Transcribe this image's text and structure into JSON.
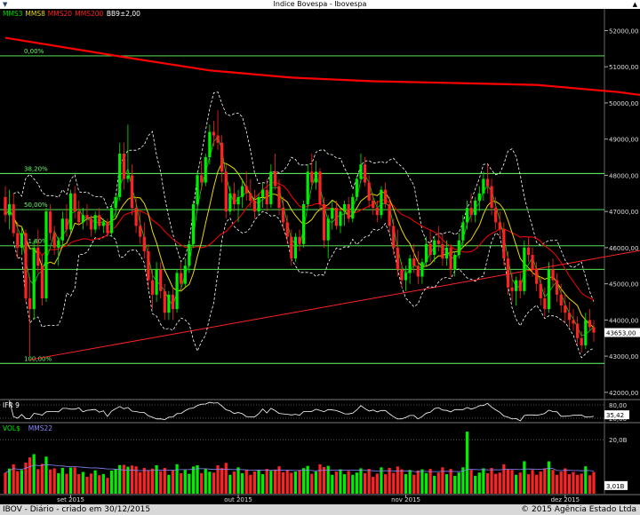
{
  "window": {
    "title": "Indice Bovespa - Ibovespa"
  },
  "footer": {
    "left": "IBOV - Diário - criado em 30/12/2015",
    "right": "© 2015 Agência Estado Ltda"
  },
  "colors": {
    "mms3": "#00dd00",
    "mms8": "#e8d800",
    "mms20": "#ff0000",
    "mms200": "#ff0000",
    "bb": "#ffffff",
    "up": "#00ee00",
    "down": "#ff2222",
    "fib": "#66ff66",
    "ifr": "#ffffff",
    "mms22": "#8888ff"
  },
  "chart_data": [
    {
      "type": "candlestick",
      "title": "Indice Bovespa - Ibovespa",
      "legend": [
        {
          "name": "MMS3",
          "color": "#00dd00"
        },
        {
          "name": "MMS8",
          "color": "#e8d800"
        },
        {
          "name": "MMS20",
          "color": "#ff2222"
        },
        {
          "name": "MMS200",
          "color": "#ff2222"
        },
        {
          "name": "BB9±2,00",
          "color": "#ffffff"
        }
      ],
      "y_ticks": [
        52000,
        51000,
        50000,
        49000,
        48000,
        47000,
        46000,
        45000,
        44000,
        43000,
        42000
      ],
      "y_tick_labels": [
        "52000,00",
        "51000,00",
        "50000,00",
        "49000,00",
        "48000,00",
        "47000,00",
        "46000,00",
        "45000,00",
        "44000,00",
        "43000,00",
        "42000,00"
      ],
      "ylim": [
        41800,
        52600
      ],
      "last_price_label": "43653,00",
      "last_price": 43653,
      "x_ticks": [
        {
          "i": 16,
          "label": "set 2015"
        },
        {
          "i": 57,
          "label": "out 2015"
        },
        {
          "i": 98,
          "label": "nov 2015"
        },
        {
          "i": 137,
          "label": "dez 2015"
        }
      ],
      "fibonacci": [
        {
          "label": "0,00%",
          "value": 51300
        },
        {
          "label": "38,20%",
          "value": 48050
        },
        {
          "label": "50,00%",
          "value": 47050
        },
        {
          "label": "61,80%",
          "value": 46050
        },
        {
          "label": "",
          "value": 45400
        },
        {
          "label": "100,00%",
          "value": 42800
        }
      ],
      "trendline": {
        "from": [
          6,
          42900
        ],
        "to": [
          179,
          46400
        ]
      },
      "mms200": [
        [
          0,
          51800
        ],
        [
          30,
          51250
        ],
        [
          50,
          50900
        ],
        [
          70,
          50700
        ],
        [
          90,
          50600
        ],
        [
          110,
          50550
        ],
        [
          130,
          50500
        ],
        [
          150,
          50300
        ],
        [
          170,
          50000
        ],
        [
          176,
          49900
        ]
      ],
      "candles": [
        [
          47400,
          47700,
          46700,
          46900
        ],
        [
          46900,
          47600,
          46500,
          47200
        ],
        [
          47200,
          47500,
          46300,
          46400
        ],
        [
          46400,
          46700,
          45700,
          46000
        ],
        [
          46000,
          46600,
          45800,
          46400
        ],
        [
          46400,
          46500,
          44500,
          44600
        ],
        [
          44600,
          45200,
          43000,
          44300
        ],
        [
          44300,
          46200,
          44000,
          46000
        ],
        [
          46000,
          46500,
          45300,
          45500
        ],
        [
          45500,
          45800,
          44400,
          44600
        ],
        [
          44600,
          47100,
          44500,
          47000
        ],
        [
          47000,
          47200,
          46200,
          46400
        ],
        [
          46400,
          46600,
          45800,
          46000
        ],
        [
          46000,
          46300,
          45500,
          46200
        ],
        [
          46200,
          47000,
          46000,
          46800
        ],
        [
          46800,
          47200,
          46300,
          46500
        ],
        [
          46500,
          47600,
          46400,
          47500
        ],
        [
          47500,
          47700,
          46800,
          47000
        ],
        [
          47000,
          47300,
          46600,
          46700
        ],
        [
          46700,
          47100,
          46500,
          46900
        ],
        [
          46900,
          47200,
          46600,
          46800
        ],
        [
          46800,
          46900,
          46300,
          46500
        ],
        [
          46500,
          47000,
          46400,
          46900
        ],
        [
          46900,
          47100,
          46500,
          46600
        ],
        [
          46600,
          46800,
          46400,
          46700
        ],
        [
          46700,
          46800,
          46300,
          46400
        ],
        [
          46400,
          47200,
          46300,
          47100
        ],
        [
          47100,
          47500,
          46800,
          47400
        ],
        [
          47400,
          48900,
          47300,
          48600
        ],
        [
          48600,
          48900,
          47600,
          47900
        ],
        [
          47900,
          49400,
          47800,
          48000
        ],
        [
          48000,
          48300,
          46900,
          47100
        ],
        [
          47100,
          47400,
          46400,
          46600
        ],
        [
          46600,
          47000,
          46100,
          46300
        ],
        [
          46300,
          46700,
          45700,
          45900
        ],
        [
          45900,
          46100,
          44900,
          45100
        ],
        [
          45100,
          45400,
          44300,
          44700
        ],
        [
          44700,
          45600,
          44500,
          45400
        ],
        [
          45400,
          45600,
          44600,
          44800
        ],
        [
          44800,
          45000,
          44000,
          44200
        ],
        [
          44200,
          44800,
          44000,
          44700
        ],
        [
          44700,
          44900,
          44000,
          44300
        ],
        [
          44300,
          45400,
          44200,
          45300
        ],
        [
          45300,
          45600,
          44800,
          45000
        ],
        [
          45000,
          45700,
          44900,
          45500
        ],
        [
          45500,
          46200,
          45300,
          46100
        ],
        [
          46100,
          47300,
          46000,
          47200
        ],
        [
          47200,
          48100,
          47000,
          48000
        ],
        [
          48000,
          48400,
          47600,
          47800
        ],
        [
          47800,
          48600,
          47700,
          48500
        ],
        [
          48500,
          49400,
          48300,
          49200
        ],
        [
          49200,
          49500,
          48800,
          49100
        ],
        [
          49100,
          49800,
          48700,
          48900
        ],
        [
          48900,
          49100,
          47800,
          48100
        ],
        [
          48100,
          48300,
          46800,
          47000
        ],
        [
          47000,
          47700,
          46900,
          47500
        ],
        [
          47500,
          47800,
          47000,
          47200
        ],
        [
          47200,
          47600,
          46700,
          47400
        ],
        [
          47400,
          47900,
          47100,
          47700
        ],
        [
          47700,
          48100,
          47300,
          47500
        ],
        [
          47500,
          47900,
          47100,
          47300
        ],
        [
          47300,
          47600,
          46800,
          47000
        ],
        [
          47000,
          47500,
          46900,
          47400
        ],
        [
          47400,
          47800,
          47100,
          47600
        ],
        [
          47600,
          47900,
          47000,
          47200
        ],
        [
          47200,
          48300,
          47100,
          48100
        ],
        [
          48100,
          48600,
          47600,
          47700
        ],
        [
          47700,
          47900,
          46900,
          47100
        ],
        [
          47100,
          47400,
          46500,
          46700
        ],
        [
          46700,
          46900,
          46100,
          46300
        ],
        [
          46300,
          46500,
          45500,
          45700
        ],
        [
          45700,
          46400,
          45600,
          46300
        ],
        [
          46300,
          46500,
          45900,
          46100
        ],
        [
          46100,
          47300,
          46000,
          47200
        ],
        [
          47200,
          48300,
          47100,
          48100
        ],
        [
          48100,
          48600,
          47700,
          47800
        ],
        [
          47800,
          48400,
          47600,
          48100
        ],
        [
          48100,
          48200,
          47000,
          47200
        ],
        [
          47200,
          47400,
          46000,
          46200
        ],
        [
          46200,
          46900,
          45700,
          46800
        ],
        [
          46800,
          47300,
          46500,
          47100
        ],
        [
          47100,
          47300,
          46500,
          46600
        ],
        [
          46600,
          47100,
          46400,
          47000
        ],
        [
          47000,
          47300,
          46600,
          47200
        ],
        [
          47200,
          47400,
          46700,
          46800
        ],
        [
          46800,
          47500,
          46700,
          47400
        ],
        [
          47400,
          48000,
          47300,
          47900
        ],
        [
          47900,
          48600,
          47800,
          48300
        ],
        [
          48300,
          48500,
          47700,
          47800
        ],
        [
          47800,
          48000,
          47100,
          47300
        ],
        [
          47300,
          47500,
          46900,
          47100
        ],
        [
          47100,
          47300,
          46700,
          46900
        ],
        [
          46900,
          47700,
          46800,
          47600
        ],
        [
          47600,
          47800,
          47100,
          47200
        ],
        [
          47200,
          47400,
          46400,
          46600
        ],
        [
          46600,
          46800,
          45800,
          46000
        ],
        [
          46000,
          46500,
          45200,
          45400
        ],
        [
          45400,
          45600,
          44900,
          45100
        ],
        [
          45100,
          45500,
          44800,
          45300
        ],
        [
          45300,
          45800,
          45000,
          45700
        ],
        [
          45700,
          46100,
          45300,
          45500
        ],
        [
          45500,
          45900,
          45000,
          45200
        ],
        [
          45200,
          45700,
          45000,
          45600
        ],
        [
          45600,
          46300,
          45500,
          46100
        ],
        [
          46100,
          46500,
          45600,
          45800
        ],
        [
          45800,
          46300,
          45600,
          46200
        ],
        [
          46200,
          46600,
          45900,
          46100
        ],
        [
          46100,
          46400,
          45500,
          45700
        ],
        [
          45700,
          46200,
          45500,
          46000
        ],
        [
          46000,
          46100,
          45200,
          45400
        ],
        [
          45400,
          45900,
          45200,
          45800
        ],
        [
          45800,
          46400,
          45700,
          46200
        ],
        [
          46200,
          46900,
          46000,
          46700
        ],
        [
          46700,
          47300,
          46500,
          47100
        ],
        [
          47100,
          47500,
          46700,
          46900
        ],
        [
          46900,
          47400,
          46700,
          47300
        ],
        [
          47300,
          47700,
          47000,
          47500
        ],
        [
          47500,
          48100,
          47300,
          47900
        ],
        [
          47900,
          48300,
          47500,
          47700
        ],
        [
          47700,
          47900,
          46900,
          47100
        ],
        [
          47100,
          47400,
          46500,
          46700
        ],
        [
          46700,
          47000,
          46300,
          46500
        ],
        [
          46500,
          46700,
          45500,
          45700
        ],
        [
          45700,
          45900,
          44700,
          44900
        ],
        [
          44900,
          45300,
          44500,
          44800
        ],
        [
          44800,
          45200,
          44400,
          45100
        ],
        [
          45100,
          45300,
          44600,
          44800
        ],
        [
          44800,
          46200,
          44700,
          46000
        ],
        [
          46000,
          46300,
          45600,
          45800
        ],
        [
          45800,
          46000,
          45200,
          45400
        ],
        [
          45400,
          45600,
          44800,
          45000
        ],
        [
          45000,
          45200,
          44400,
          44600
        ],
        [
          44600,
          44900,
          44100,
          44300
        ],
        [
          44300,
          45600,
          44200,
          45400
        ],
        [
          45400,
          45700,
          44900,
          45100
        ],
        [
          45100,
          45300,
          44500,
          44700
        ],
        [
          44700,
          45000,
          44200,
          44400
        ],
        [
          44400,
          44700,
          43900,
          44200
        ],
        [
          44200,
          44500,
          43800,
          44000
        ],
        [
          44000,
          44300,
          43700,
          43900
        ],
        [
          43900,
          44100,
          43300,
          43500
        ],
        [
          43500,
          43700,
          43100,
          43300
        ],
        [
          43300,
          44200,
          43200,
          44000
        ],
        [
          44000,
          44300,
          43700,
          43800
        ],
        [
          43800,
          44000,
          43400,
          43650
        ]
      ]
    },
    {
      "type": "line",
      "title": "IFR 9",
      "y_ticks": [
        80,
        20
      ],
      "y_tick_labels": [
        "80,00",
        "20,00"
      ],
      "last_value_label": "35,42",
      "ylim": [
        0,
        100
      ]
    },
    {
      "type": "bar",
      "title": "VOL$",
      "legend": [
        {
          "name": "VOL$",
          "color": "#00ee00"
        },
        {
          "name": "MMS22",
          "color": "#8888ff"
        }
      ],
      "y_ticks": [
        20
      ],
      "y_tick_labels": [
        "20,0B"
      ],
      "last_value_label": "3,01B",
      "ylim": [
        0,
        26
      ]
    }
  ]
}
